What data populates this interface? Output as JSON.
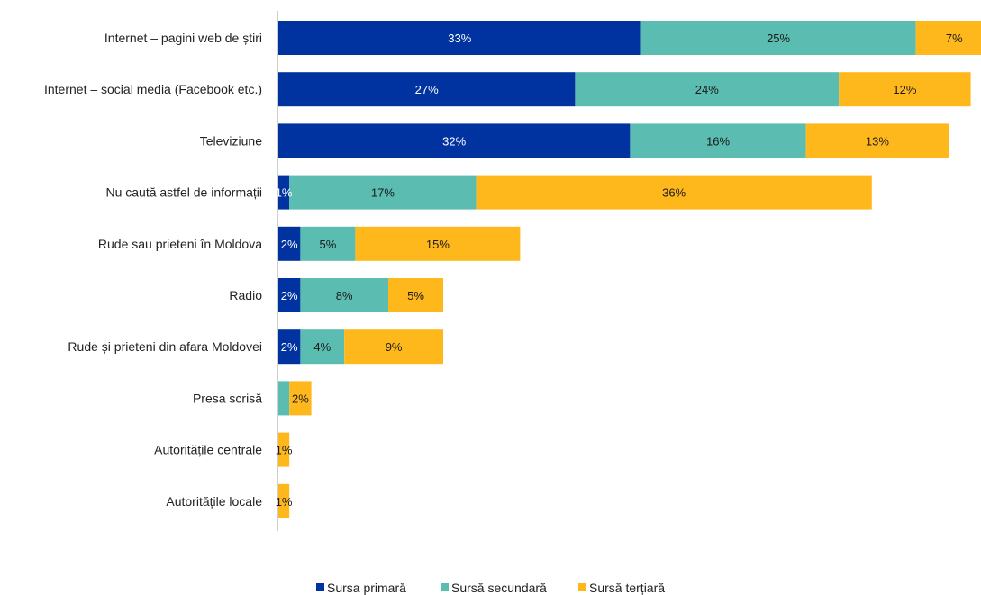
{
  "chart_data": {
    "type": "bar",
    "orientation": "horizontal",
    "stacked": true,
    "categories": [
      "Internet – pagini web de știri",
      "Internet – social media (Facebook etc.)",
      "Televiziune",
      "Nu caută astfel de informații",
      "Rude sau prieteni în Moldova",
      "Radio",
      "Rude și prieteni din afara Moldovei",
      "Presa scrisă",
      "Autoritățile centrale",
      "Autoritățile locale"
    ],
    "series": [
      {
        "name": "Sursa primară",
        "color": "#0033a0",
        "label_color": "#ffffff",
        "values": [
          33,
          27,
          32,
          1,
          2,
          2,
          2,
          0,
          0,
          0
        ],
        "labels": [
          "33%",
          "27%",
          "32%",
          "1%",
          "2%",
          "2%",
          "2%",
          "",
          "",
          ""
        ]
      },
      {
        "name": "Sursă secundară",
        "color": "#5bbcb1",
        "label_color": "#1a1a1a",
        "values": [
          25,
          24,
          16,
          17,
          5,
          8,
          4,
          1,
          0,
          0
        ],
        "labels": [
          "25%",
          "24%",
          "16%",
          "17%",
          "5%",
          "8%",
          "4%",
          "",
          "",
          ""
        ]
      },
      {
        "name": "Sursă terțiară",
        "color": "#ffb81c",
        "label_color": "#1a1a1a",
        "values": [
          7,
          12,
          13,
          36,
          15,
          5,
          9,
          2,
          1,
          1
        ],
        "labels": [
          "7%",
          "12%",
          "13%",
          "36%",
          "15%",
          "5%",
          "9%",
          "2%",
          "1%",
          "1%"
        ]
      }
    ],
    "xlim": [
      0,
      63
    ],
    "grid": false,
    "legend_position": "bottom"
  }
}
